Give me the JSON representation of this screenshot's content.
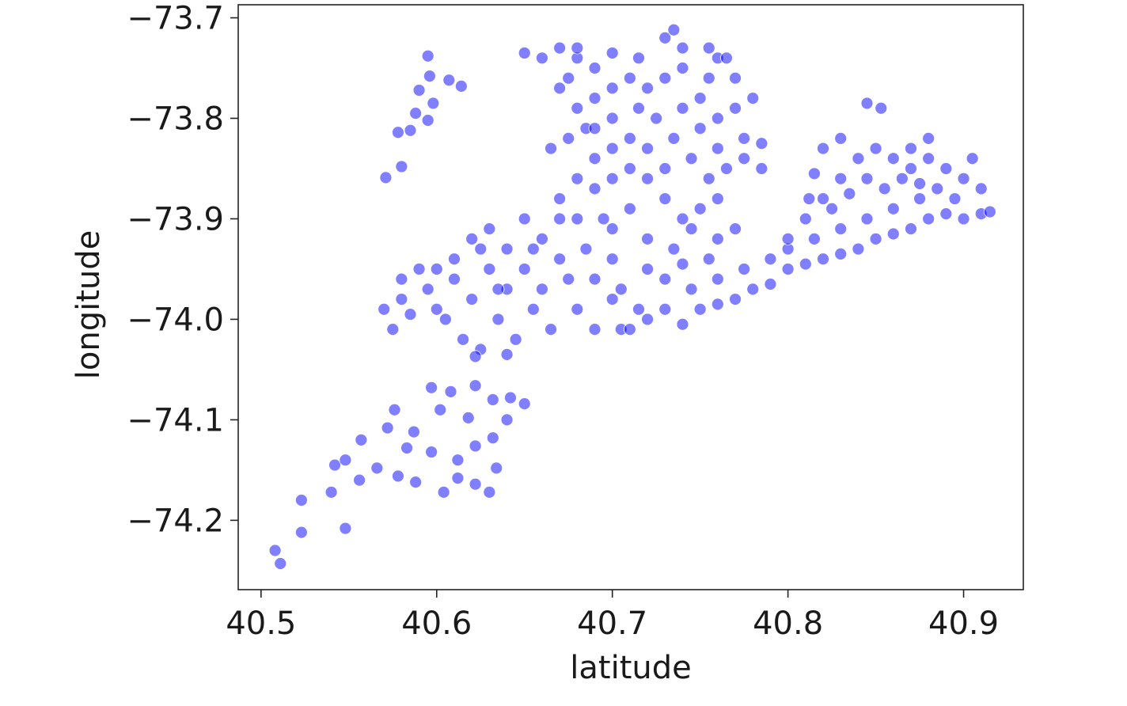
{
  "chart_data": {
    "type": "scatter",
    "x_label": "latitude",
    "y_label": "longitude",
    "color": "#0000ff",
    "grid": false,
    "xlim": [
      40.487,
      40.934
    ],
    "xticks": [
      40.5,
      40.6,
      40.7,
      40.8,
      40.9
    ],
    "ylim": [
      -74.269,
      -73.687
    ],
    "yticks": [
      {
        "value": -73.7,
        "label": "−73.7"
      },
      {
        "value": -73.8,
        "label": "−73.8"
      },
      {
        "value": -73.9,
        "label": "−73.9"
      },
      {
        "value": -74.0,
        "label": "−74.0"
      },
      {
        "value": -74.1,
        "label": "−74.1"
      },
      {
        "value": -74.2,
        "label": "−74.2"
      }
    ],
    "x": [
      40.508,
      40.511,
      40.523,
      40.523,
      40.54,
      40.542,
      40.548,
      40.548,
      40.556,
      40.557,
      40.566,
      40.576,
      40.578,
      40.587,
      40.597,
      40.608,
      40.622,
      40.632,
      40.642,
      40.65,
      40.597,
      40.612,
      40.622,
      40.632,
      40.634,
      40.622,
      40.604,
      40.612,
      40.588,
      40.572,
      40.64,
      40.618,
      40.63,
      40.602,
      40.583,
      40.595,
      40.596,
      40.607,
      40.59,
      40.598,
      40.588,
      40.585,
      40.595,
      40.578,
      40.571,
      40.58,
      40.614,
      40.58,
      40.58,
      40.585,
      40.59,
      40.595,
      40.6,
      40.605,
      40.61,
      40.61,
      40.615,
      40.62,
      40.62,
      40.625,
      40.63,
      40.63,
      40.635,
      40.64,
      40.64,
      40.645,
      40.65,
      40.65,
      40.655,
      40.66,
      40.66,
      40.665,
      40.67,
      40.67,
      40.675,
      40.68,
      40.68,
      40.685,
      40.69,
      40.69,
      40.695,
      40.7,
      40.7,
      40.705,
      40.6,
      40.57,
      40.575,
      40.625,
      40.635,
      40.655,
      40.64,
      40.622,
      40.65,
      40.66,
      40.67,
      40.68,
      40.69,
      40.7,
      40.715,
      40.73,
      40.74,
      40.67,
      40.68,
      40.69,
      40.7,
      40.71,
      40.72,
      40.73,
      40.665,
      40.675,
      40.685,
      40.7,
      40.715,
      40.725,
      40.74,
      40.75,
      40.76,
      40.77,
      40.78,
      40.69,
      40.7,
      40.71,
      40.72,
      40.735,
      40.75,
      40.76,
      40.68,
      40.69,
      40.7,
      40.71,
      40.72,
      40.73,
      40.745,
      40.755,
      40.765,
      40.775,
      40.785,
      40.67,
      40.71,
      40.73,
      40.74,
      40.75,
      40.76,
      40.7,
      40.72,
      40.735,
      40.745,
      40.76,
      40.77,
      40.76,
      40.77,
      40.755,
      40.74,
      40.71,
      40.715,
      40.72,
      40.73,
      40.74,
      40.75,
      40.76,
      40.77,
      40.78,
      40.79,
      40.8,
      40.81,
      40.82,
      40.83,
      40.84,
      40.85,
      40.86,
      40.87,
      40.88,
      40.89,
      40.9,
      40.91,
      40.73,
      40.745,
      40.76,
      40.775,
      40.79,
      40.8,
      40.815,
      40.83,
      40.845,
      40.86,
      40.875,
      40.72,
      40.705,
      40.74,
      40.755,
      40.81,
      40.82,
      40.83,
      40.84,
      40.85,
      40.86,
      40.87,
      40.88,
      40.89,
      40.9,
      40.905,
      40.825,
      40.835,
      40.845,
      40.855,
      40.865,
      40.875,
      40.885,
      40.895,
      40.815,
      40.82,
      40.83,
      40.845,
      40.853,
      40.87,
      40.88,
      40.91,
      40.915,
      40.8,
      40.812,
      40.755,
      40.765,
      40.775,
      40.785,
      40.735,
      40.68,
      40.675,
      40.69
    ],
    "values": [
      -74.23,
      -74.243,
      -74.18,
      -74.212,
      -74.172,
      -74.145,
      -74.14,
      -74.208,
      -74.16,
      -74.12,
      -74.148,
      -74.09,
      -74.156,
      -74.112,
      -74.068,
      -74.072,
      -74.066,
      -74.08,
      -74.078,
      -74.084,
      -74.132,
      -74.14,
      -74.126,
      -74.118,
      -74.148,
      -74.164,
      -74.172,
      -74.158,
      -74.162,
      -74.108,
      -74.1,
      -74.098,
      -74.172,
      -74.09,
      -74.128,
      -73.738,
      -73.758,
      -73.762,
      -73.772,
      -73.785,
      -73.795,
      -73.812,
      -73.802,
      -73.814,
      -73.859,
      -73.848,
      -73.768,
      -73.96,
      -73.98,
      -73.995,
      -73.95,
      -73.97,
      -73.99,
      -74.0,
      -73.94,
      -73.96,
      -74.02,
      -73.92,
      -73.98,
      -74.03,
      -73.91,
      -73.95,
      -74.0,
      -73.93,
      -73.97,
      -74.02,
      -73.9,
      -73.95,
      -73.99,
      -73.92,
      -73.97,
      -74.01,
      -73.88,
      -73.94,
      -73.96,
      -73.9,
      -73.99,
      -73.93,
      -73.96,
      -74.01,
      -73.9,
      -73.94,
      -73.98,
      -74.01,
      -73.95,
      -73.99,
      -74.01,
      -73.93,
      -73.97,
      -73.93,
      -74.035,
      -74.037,
      -73.735,
      -73.74,
      -73.73,
      -73.74,
      -73.75,
      -73.735,
      -73.74,
      -73.72,
      -73.73,
      -73.77,
      -73.79,
      -73.78,
      -73.77,
      -73.76,
      -73.77,
      -73.76,
      -73.83,
      -73.82,
      -73.81,
      -73.8,
      -73.79,
      -73.8,
      -73.79,
      -73.78,
      -73.8,
      -73.79,
      -73.78,
      -73.84,
      -73.83,
      -73.82,
      -73.83,
      -73.82,
      -73.81,
      -73.83,
      -73.86,
      -73.87,
      -73.86,
      -73.85,
      -73.86,
      -73.85,
      -73.84,
      -73.86,
      -73.85,
      -73.84,
      -73.85,
      -73.9,
      -73.89,
      -73.88,
      -73.9,
      -73.89,
      -73.88,
      -73.91,
      -73.92,
      -73.93,
      -73.91,
      -73.92,
      -73.91,
      -73.74,
      -73.76,
      -73.76,
      -73.75,
      -74.01,
      -73.99,
      -74.0,
      -73.99,
      -74.005,
      -73.99,
      -73.985,
      -73.98,
      -73.97,
      -73.965,
      -73.95,
      -73.945,
      -73.94,
      -73.935,
      -73.93,
      -73.92,
      -73.915,
      -73.91,
      -73.9,
      -73.895,
      -73.9,
      -73.895,
      -73.96,
      -73.97,
      -73.96,
      -73.95,
      -73.94,
      -73.93,
      -73.92,
      -73.91,
      -73.9,
      -73.89,
      -73.88,
      -73.95,
      -73.97,
      -73.945,
      -73.94,
      -73.9,
      -73.88,
      -73.86,
      -73.84,
      -73.83,
      -73.84,
      -73.83,
      -73.84,
      -73.85,
      -73.86,
      -73.84,
      -73.89,
      -73.875,
      -73.86,
      -73.87,
      -73.86,
      -73.865,
      -73.87,
      -73.88,
      -73.855,
      -73.83,
      -73.82,
      -73.785,
      -73.79,
      -73.85,
      -73.82,
      -73.87,
      -73.893,
      -73.92,
      -73.88,
      -73.73,
      -73.74,
      -73.82,
      -73.825,
      -73.712,
      -73.73,
      -73.76,
      -73.81
    ]
  }
}
